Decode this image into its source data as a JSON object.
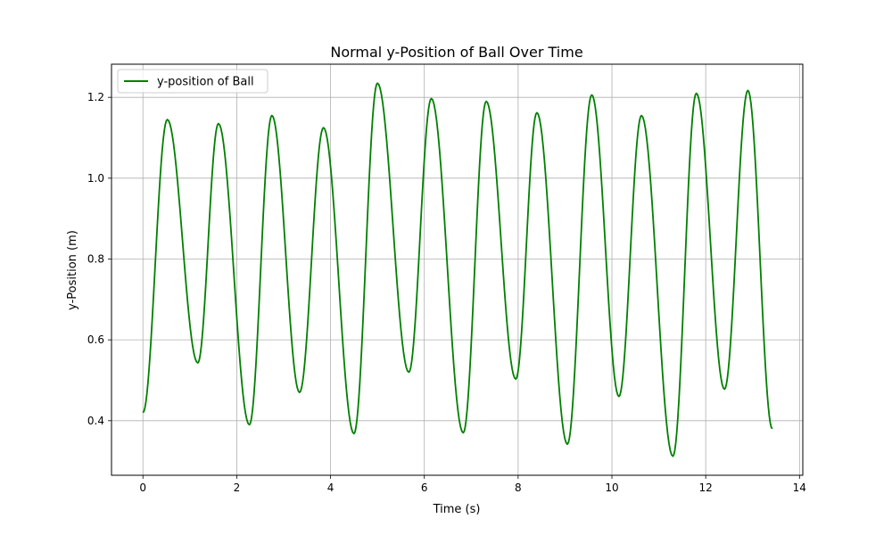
{
  "chart_data": {
    "type": "line",
    "title": "Normal y-Position of Ball Over Time",
    "xlabel": "Time (s)",
    "ylabel": "y-Position (m)",
    "xlim": [
      -0.67,
      14.07
    ],
    "ylim": [
      0.265,
      1.282
    ],
    "xticks": [
      0,
      2,
      4,
      6,
      8,
      10,
      12,
      14
    ],
    "yticks": [
      0.4,
      0.6,
      0.8,
      1.0,
      1.2
    ],
    "xtick_labels": [
      "0",
      "2",
      "4",
      "6",
      "8",
      "10",
      "12",
      "14"
    ],
    "ytick_labels": [
      "0.4",
      "0.6",
      "0.8",
      "1.0",
      "1.2"
    ],
    "grid": true,
    "legend_position": "top-left",
    "series": [
      {
        "name": "y-position of Ball",
        "color": "#008000",
        "extrema": [
          [
            0.0,
            0.42
          ],
          [
            0.52,
            1.145
          ],
          [
            1.17,
            0.543
          ],
          [
            1.61,
            1.135
          ],
          [
            2.27,
            0.39
          ],
          [
            2.75,
            1.155
          ],
          [
            3.34,
            0.47
          ],
          [
            3.85,
            1.125
          ],
          [
            4.5,
            0.368
          ],
          [
            5.0,
            1.235
          ],
          [
            5.67,
            0.52
          ],
          [
            6.15,
            1.197
          ],
          [
            6.83,
            0.37
          ],
          [
            7.32,
            1.19
          ],
          [
            7.95,
            0.503
          ],
          [
            8.4,
            1.162
          ],
          [
            9.05,
            0.342
          ],
          [
            9.57,
            1.206
          ],
          [
            10.15,
            0.46
          ],
          [
            10.63,
            1.155
          ],
          [
            11.3,
            0.312
          ],
          [
            11.8,
            1.21
          ],
          [
            12.4,
            0.478
          ],
          [
            12.9,
            1.217
          ],
          [
            13.42,
            0.38
          ]
        ]
      }
    ]
  }
}
